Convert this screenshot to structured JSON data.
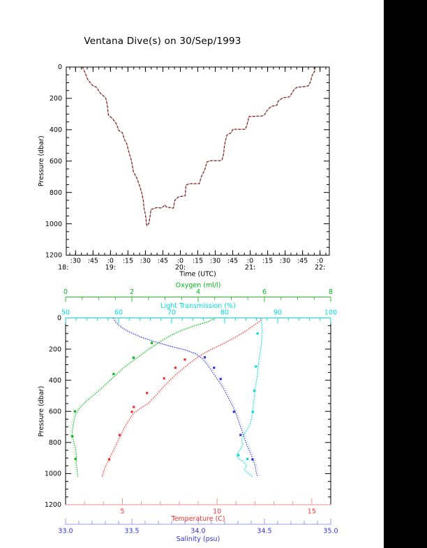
{
  "title": "Ventana Dive(s) on 30/Sep/1993",
  "colors": {
    "bg": "#ffffff",
    "frame": "#000000",
    "strip": "#000000",
    "dive_dark": "#4a1818",
    "dive_light": "#dc9090",
    "temp": "#e83030",
    "temp_light": "#ffb0b0",
    "temp_axis": "#f09090",
    "temp_label": "#f03030",
    "sal": "#3030e0",
    "sal_light": "#a8a8ff",
    "sal_axis": "#9898e8",
    "sal_label": "#3232d8",
    "oxy": "#00b818",
    "oxy_light": "#90e890",
    "oxy_axis": "#22cc22",
    "oxy_label": "#00b818",
    "light": "#00d8d8",
    "light_light": "#a0ffff",
    "light_axis": "#00e0e0",
    "light_label": "#00dcdc"
  },
  "top_chart": {
    "ylabel": "Pressure (dbar)",
    "xlabel": "Time (UTC)",
    "y_ticks": [
      {
        "v": 0,
        "label": "0"
      },
      {
        "v": 200,
        "label": "200"
      },
      {
        "v": 400,
        "label": "400"
      },
      {
        "v": 600,
        "label": "600"
      },
      {
        "v": 800,
        "label": "800"
      },
      {
        "v": 1000,
        "label": "1000"
      },
      {
        "v": 1200,
        "label": "1200"
      }
    ],
    "x_ticks": [
      {
        "t": 18.5,
        "label": ":30"
      },
      {
        "t": 18.75,
        "label": ":45"
      },
      {
        "t": 19.0,
        "label": ":0"
      },
      {
        "t": 19.25,
        "label": ":15"
      },
      {
        "t": 19.5,
        "label": ":30"
      },
      {
        "t": 19.75,
        "label": ":45"
      },
      {
        "t": 20.0,
        "label": ":0"
      },
      {
        "t": 20.25,
        "label": ":15"
      },
      {
        "t": 20.5,
        "label": ":30"
      },
      {
        "t": 20.75,
        "label": ":45"
      },
      {
        "t": 21.0,
        "label": ":0"
      },
      {
        "t": 21.25,
        "label": ":15"
      },
      {
        "t": 21.5,
        "label": ":30"
      },
      {
        "t": 21.75,
        "label": ":45"
      },
      {
        "t": 22.0,
        "label": ":0"
      }
    ],
    "x_hour_labels": [
      {
        "t": 18.325,
        "label": "18:"
      },
      {
        "t": 19.0,
        "label": "19:"
      },
      {
        "t": 20.0,
        "label": "20:"
      },
      {
        "t": 21.0,
        "label": "21:"
      },
      {
        "t": 22.0,
        "label": "22:"
      }
    ]
  },
  "bottom_chart": {
    "ylabel": "Pressure (dbar)",
    "y_ticks": [
      {
        "v": 0,
        "label": "0"
      },
      {
        "v": 200,
        "label": "200"
      },
      {
        "v": 400,
        "label": "400"
      },
      {
        "v": 600,
        "label": "600"
      },
      {
        "v": 800,
        "label": "800"
      },
      {
        "v": 1000,
        "label": "1000"
      },
      {
        "v": 1200,
        "label": "1200"
      }
    ],
    "axes": [
      {
        "id": "oxygen",
        "title": "Oxygen (ml/l)",
        "range": [
          0,
          8
        ],
        "minor": 0.5,
        "ticks": [
          {
            "v": 0,
            "label": "0"
          },
          {
            "v": 2,
            "label": "2"
          },
          {
            "v": 4,
            "label": "4"
          },
          {
            "v": 6,
            "label": "6"
          },
          {
            "v": 8,
            "label": "8"
          }
        ]
      },
      {
        "id": "light",
        "title": "Light Transmission (%)",
        "range": [
          50,
          100
        ],
        "minor": 2,
        "ticks": [
          {
            "v": 50,
            "label": "50"
          },
          {
            "v": 60,
            "label": "60"
          },
          {
            "v": 70,
            "label": "70"
          },
          {
            "v": 80,
            "label": "80"
          },
          {
            "v": 90,
            "label": "90"
          },
          {
            "v": 100,
            "label": "100"
          }
        ]
      },
      {
        "id": "temperature",
        "title": "Temperature (C)",
        "range": [
          2,
          16
        ],
        "minor": 1,
        "ticks": [
          {
            "v": 5,
            "label": "5"
          },
          {
            "v": 10,
            "label": "10"
          },
          {
            "v": 15,
            "label": "15"
          }
        ]
      },
      {
        "id": "salinity",
        "title": "Salinity (psu)",
        "range": [
          33,
          35
        ],
        "minor": 0.1,
        "ticks": [
          {
            "v": 33,
            "label": "33.0"
          },
          {
            "v": 33.5,
            "label": "33.5"
          },
          {
            "v": 34,
            "label": "34.0"
          },
          {
            "v": 34.5,
            "label": "34.5"
          },
          {
            "v": 35,
            "label": "35.0"
          }
        ]
      }
    ]
  },
  "chart_data": [
    {
      "id": "dive_track",
      "type": "line",
      "title": "Ventana Dive(s) on 30/Sep/1993",
      "xlabel": "Time (UTC)",
      "ylabel": "Pressure (dbar)",
      "x_unit": "decimal_hours_UTC",
      "xlim": [
        18.367,
        22.133
      ],
      "ylim": [
        0,
        1200
      ],
      "y_inverted": true,
      "points": [
        [
          18.6,
          0
        ],
        [
          18.64,
          40
        ],
        [
          18.67,
          76
        ],
        [
          18.7,
          95
        ],
        [
          18.75,
          120
        ],
        [
          18.8,
          129
        ],
        [
          18.85,
          165
        ],
        [
          18.93,
          196
        ],
        [
          18.95,
          232
        ],
        [
          18.97,
          307
        ],
        [
          19.03,
          330
        ],
        [
          19.08,
          360
        ],
        [
          19.12,
          405
        ],
        [
          19.17,
          419
        ],
        [
          19.2,
          463
        ],
        [
          19.23,
          486
        ],
        [
          19.27,
          553
        ],
        [
          19.3,
          597
        ],
        [
          19.33,
          672
        ],
        [
          19.37,
          700
        ],
        [
          19.42,
          762
        ],
        [
          19.45,
          806
        ],
        [
          19.47,
          851
        ],
        [
          19.48,
          900
        ],
        [
          19.5,
          940
        ],
        [
          19.52,
          1012
        ],
        [
          19.55,
          998
        ],
        [
          19.57,
          945
        ],
        [
          19.58,
          909
        ],
        [
          19.67,
          896
        ],
        [
          19.73,
          900
        ],
        [
          19.78,
          880
        ],
        [
          19.8,
          893
        ],
        [
          19.9,
          900
        ],
        [
          19.92,
          851
        ],
        [
          19.97,
          829
        ],
        [
          20.07,
          820
        ],
        [
          20.08,
          753
        ],
        [
          20.13,
          744
        ],
        [
          20.27,
          744
        ],
        [
          20.28,
          731
        ],
        [
          20.3,
          700
        ],
        [
          20.35,
          655
        ],
        [
          20.38,
          606
        ],
        [
          20.43,
          597
        ],
        [
          20.58,
          597
        ],
        [
          20.6,
          588
        ],
        [
          20.62,
          553
        ],
        [
          20.63,
          508
        ],
        [
          20.65,
          463
        ],
        [
          20.67,
          432
        ],
        [
          20.73,
          419
        ],
        [
          20.75,
          397
        ],
        [
          20.93,
          397
        ],
        [
          20.95,
          374
        ],
        [
          20.97,
          343
        ],
        [
          20.98,
          316
        ],
        [
          21.17,
          312
        ],
        [
          21.2,
          307
        ],
        [
          21.22,
          294
        ],
        [
          21.23,
          285
        ],
        [
          21.27,
          263
        ],
        [
          21.3,
          254
        ],
        [
          21.32,
          249
        ],
        [
          21.38,
          245
        ],
        [
          21.4,
          218
        ],
        [
          21.43,
          209
        ],
        [
          21.47,
          196
        ],
        [
          21.55,
          192
        ],
        [
          21.57,
          187
        ],
        [
          21.6,
          165
        ],
        [
          21.63,
          143
        ],
        [
          21.67,
          129
        ],
        [
          21.77,
          125
        ],
        [
          21.83,
          120
        ],
        [
          21.85,
          107
        ],
        [
          21.87,
          85
        ],
        [
          21.88,
          62
        ],
        [
          21.9,
          40
        ],
        [
          21.92,
          31
        ],
        [
          21.93,
          0
        ]
      ]
    },
    {
      "id": "ctd_profiles",
      "type": "line",
      "ylabel": "Pressure (dbar)",
      "ylim": [
        0,
        1200
      ],
      "y_inverted": true,
      "series": [
        {
          "name": "Temperature (C)",
          "axis": "temperature",
          "xlim": [
            2,
            16
          ],
          "points": [
            [
              12.4,
              0
            ],
            [
              12.2,
              25
            ],
            [
              11.9,
              50
            ],
            [
              11.5,
              85
            ],
            [
              11.0,
              120
            ],
            [
              10.4,
              160
            ],
            [
              9.8,
              195
            ],
            [
              9.4,
              220
            ],
            [
              9.0,
              250
            ],
            [
              8.6,
              285
            ],
            [
              8.25,
              320
            ],
            [
              7.9,
              355
            ],
            [
              7.5,
              400
            ],
            [
              7.1,
              450
            ],
            [
              6.75,
              500
            ],
            [
              6.35,
              550
            ],
            [
              5.95,
              580
            ],
            [
              5.6,
              610
            ],
            [
              5.35,
              655
            ],
            [
              5.1,
              705
            ],
            [
              4.9,
              755
            ],
            [
              4.7,
              805
            ],
            [
              4.5,
              855
            ],
            [
              4.3,
              905
            ],
            [
              4.1,
              955
            ],
            [
              3.98,
              1000
            ],
            [
              3.92,
              1020
            ]
          ],
          "markers": [
            [
              8.3,
              267
            ],
            [
              7.8,
              320
            ],
            [
              7.2,
              388
            ],
            [
              6.3,
              482
            ],
            [
              5.6,
              572
            ],
            [
              5.5,
              603
            ],
            [
              4.85,
              752
            ],
            [
              4.3,
              909
            ]
          ]
        },
        {
          "name": "Salinity (psu)",
          "axis": "salinity",
          "xlim": [
            33,
            35
          ],
          "points": [
            [
              33.36,
              0
            ],
            [
              33.38,
              30
            ],
            [
              33.42,
              60
            ],
            [
              33.48,
              90
            ],
            [
              33.56,
              120
            ],
            [
              33.66,
              150
            ],
            [
              33.78,
              180
            ],
            [
              33.9,
              205
            ],
            [
              33.98,
              230
            ],
            [
              34.03,
              260
            ],
            [
              34.07,
              300
            ],
            [
              34.11,
              350
            ],
            [
              34.15,
              400
            ],
            [
              34.19,
              450
            ],
            [
              34.22,
              500
            ],
            [
              34.25,
              550
            ],
            [
              34.28,
              600
            ],
            [
              34.3,
              650
            ],
            [
              34.32,
              700
            ],
            [
              34.34,
              750
            ],
            [
              34.36,
              800
            ],
            [
              34.385,
              850
            ],
            [
              34.41,
              900
            ],
            [
              34.43,
              950
            ],
            [
              34.44,
              1000
            ],
            [
              34.45,
              1020
            ]
          ],
          "markers": [
            [
              34.05,
              253
            ],
            [
              34.12,
              320
            ],
            [
              34.17,
              392
            ],
            [
              34.27,
              603
            ],
            [
              34.32,
              752
            ],
            [
              34.41,
              909
            ]
          ]
        },
        {
          "name": "Oxygen (ml/l)",
          "axis": "oxygen",
          "xlim": [
            0,
            8
          ],
          "points": [
            [
              4.5,
              0
            ],
            [
              4.3,
              25
            ],
            [
              3.9,
              50
            ],
            [
              3.5,
              80
            ],
            [
              3.2,
              110
            ],
            [
              2.95,
              140
            ],
            [
              2.7,
              175
            ],
            [
              2.45,
              210
            ],
            [
              2.2,
              250
            ],
            [
              1.95,
              290
            ],
            [
              1.7,
              330
            ],
            [
              1.5,
              370
            ],
            [
              1.3,
              410
            ],
            [
              1.1,
              450
            ],
            [
              0.85,
              495
            ],
            [
              0.6,
              540
            ],
            [
              0.42,
              580
            ],
            [
              0.3,
              620
            ],
            [
              0.25,
              660
            ],
            [
              0.22,
              700
            ],
            [
              0.2,
              745
            ],
            [
              0.24,
              790
            ],
            [
              0.3,
              840
            ],
            [
              0.33,
              890
            ],
            [
              0.32,
              935
            ],
            [
              0.35,
              980
            ],
            [
              0.38,
              1020
            ]
          ],
          "markers": [
            [
              2.6,
              160
            ],
            [
              2.05,
              255
            ],
            [
              1.45,
              360
            ],
            [
              0.28,
              600
            ],
            [
              0.2,
              760
            ],
            [
              0.3,
              905
            ]
          ]
        },
        {
          "name": "Light Transmission (%)",
          "axis": "light",
          "xlim": [
            50,
            100
          ],
          "points": [
            [
              86.8,
              0
            ],
            [
              87.0,
              40
            ],
            [
              87.1,
              90
            ],
            [
              87.0,
              140
            ],
            [
              86.8,
              200
            ],
            [
              86.5,
              260
            ],
            [
              86.3,
              320
            ],
            [
              86.1,
              380
            ],
            [
              85.8,
              440
            ],
            [
              85.6,
              500
            ],
            [
              85.4,
              560
            ],
            [
              85.2,
              610
            ],
            [
              85.0,
              660
            ],
            [
              84.5,
              700
            ],
            [
              83.8,
              740
            ],
            [
              83.2,
              780
            ],
            [
              83.4,
              815
            ],
            [
              82.8,
              850
            ],
            [
              82.2,
              880
            ],
            [
              82.6,
              905
            ],
            [
              83.6,
              925
            ],
            [
              84.1,
              950
            ],
            [
              83.7,
              975
            ],
            [
              84.5,
              1000
            ],
            [
              85.2,
              1020
            ]
          ],
          "markers": [
            [
              86.2,
              100
            ],
            [
              85.9,
              312
            ],
            [
              85.6,
              469
            ],
            [
              85.3,
              603
            ],
            [
              82.6,
              882
            ],
            [
              84.3,
              906
            ]
          ]
        }
      ]
    }
  ]
}
